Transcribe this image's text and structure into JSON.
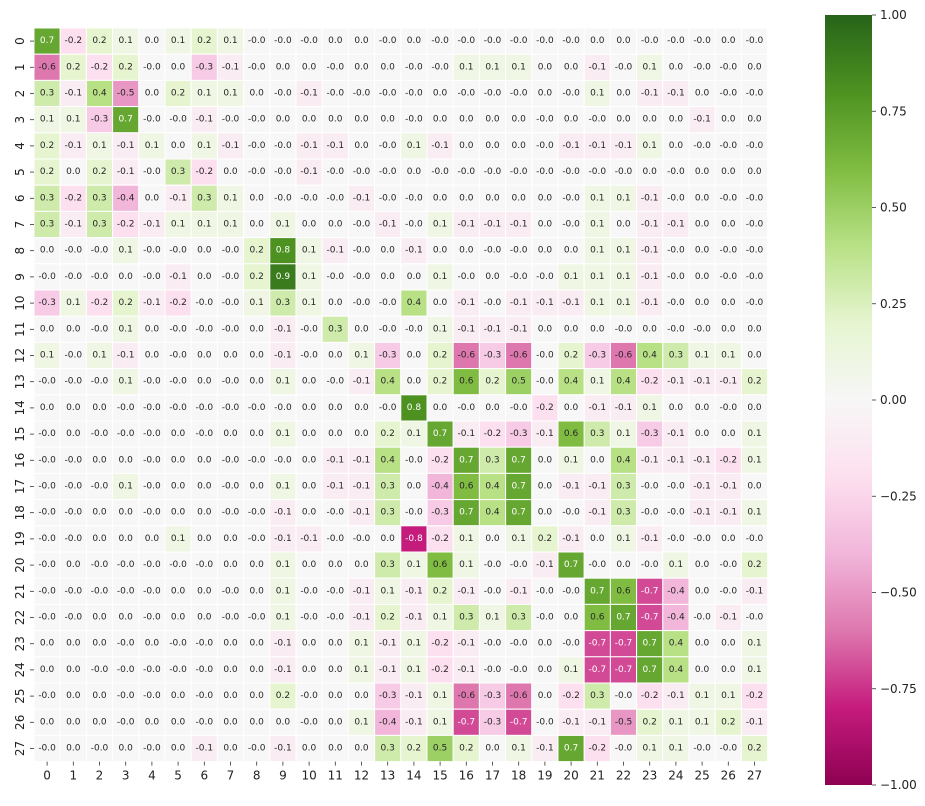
{
  "chart_data": {
    "type": "heatmap",
    "x_tick_labels": [
      "0",
      "1",
      "2",
      "3",
      "4",
      "5",
      "6",
      "7",
      "8",
      "9",
      "10",
      "11",
      "12",
      "13",
      "14",
      "15",
      "16",
      "17",
      "18",
      "19",
      "20",
      "21",
      "22",
      "23",
      "24",
      "25",
      "26",
      "27"
    ],
    "y_tick_labels": [
      "0",
      "1",
      "2",
      "3",
      "4",
      "5",
      "6",
      "7",
      "8",
      "9",
      "10",
      "11",
      "12",
      "13",
      "14",
      "15",
      "16",
      "17",
      "18",
      "19",
      "20",
      "21",
      "22",
      "23",
      "24",
      "25",
      "26",
      "27"
    ],
    "value_range": [
      -1,
      1
    ],
    "colormap": "PiYG",
    "colorbar_ticks": [
      "1.00",
      "0.75",
      "0.50",
      "0.25",
      "0.00",
      "−0.25",
      "−0.50",
      "−0.75",
      "−1.00"
    ],
    "colorbar_tick_values": [
      1,
      0.75,
      0.5,
      0.25,
      0,
      -0.25,
      -0.5,
      -0.75,
      -1
    ],
    "annotations_format": "1 decimal",
    "values": [
      [
        0.7,
        -0.2,
        0.2,
        0.1,
        0.0,
        0.1,
        0.2,
        0.1,
        -0.0,
        -0.0,
        -0.0,
        0.0,
        0.0,
        -0.0,
        0.0,
        -0.0,
        -0.0,
        -0.0,
        -0.0,
        -0.0,
        -0.0,
        0.0,
        0.0,
        -0.0,
        -0.0,
        -0.0,
        0.0,
        -0.0
      ],
      [
        -0.6,
        0.2,
        -0.2,
        0.2,
        -0.0,
        0.0,
        -0.3,
        -0.1,
        -0.0,
        0.0,
        0.0,
        -0.0,
        0.0,
        0.0,
        -0.0,
        -0.0,
        0.1,
        0.1,
        0.1,
        0.0,
        0.0,
        -0.1,
        -0.0,
        0.1,
        0.0,
        -0.0,
        -0.0,
        0.0
      ],
      [
        0.3,
        -0.1,
        0.4,
        -0.5,
        0.0,
        0.2,
        0.1,
        0.1,
        0.0,
        -0.0,
        -0.1,
        -0.0,
        -0.0,
        -0.0,
        -0.0,
        0.0,
        -0.0,
        -0.0,
        -0.0,
        0.0,
        -0.0,
        0.1,
        0.0,
        -0.1,
        -0.1,
        0.0,
        -0.0,
        -0.0
      ],
      [
        0.1,
        0.1,
        -0.3,
        0.7,
        -0.0,
        -0.0,
        -0.1,
        -0.0,
        -0.0,
        0.0,
        0.0,
        0.0,
        0.0,
        0.0,
        -0.0,
        0.0,
        0.0,
        0.0,
        0.0,
        -0.0,
        0.0,
        -0.0,
        0.0,
        0.0,
        0.0,
        -0.1,
        0.0,
        0.0
      ],
      [
        0.2,
        -0.1,
        0.1,
        -0.1,
        0.1,
        0.0,
        0.1,
        -0.1,
        -0.0,
        -0.0,
        -0.1,
        -0.1,
        0.0,
        -0.0,
        0.1,
        -0.1,
        0.0,
        0.0,
        0.0,
        -0.0,
        -0.1,
        -0.1,
        -0.1,
        0.1,
        0.0,
        -0.0,
        -0.0,
        -0.0
      ],
      [
        0.2,
        0.0,
        0.2,
        -0.1,
        -0.0,
        0.3,
        -0.2,
        0.0,
        -0.0,
        -0.0,
        -0.1,
        -0.0,
        -0.0,
        -0.0,
        0.0,
        -0.0,
        -0.0,
        -0.0,
        -0.0,
        -0.0,
        -0.0,
        -0.0,
        -0.0,
        0.0,
        -0.0,
        0.0,
        0.0,
        0.0
      ],
      [
        0.3,
        -0.2,
        0.3,
        -0.4,
        0.0,
        -0.1,
        0.3,
        0.1,
        0.0,
        -0.0,
        -0.0,
        -0.0,
        -0.1,
        -0.0,
        -0.0,
        0.0,
        0.0,
        0.0,
        0.0,
        0.0,
        -0.0,
        0.1,
        0.1,
        -0.1,
        -0.0,
        0.0,
        -0.0,
        -0.0
      ],
      [
        0.3,
        -0.1,
        0.3,
        -0.2,
        -0.1,
        0.1,
        0.1,
        0.1,
        0.0,
        0.1,
        0.0,
        0.0,
        -0.0,
        -0.1,
        -0.0,
        0.1,
        -0.1,
        -0.1,
        -0.1,
        0.0,
        -0.0,
        0.1,
        0.0,
        -0.1,
        -0.1,
        0.0,
        0.0,
        -0.0
      ],
      [
        0.0,
        -0.0,
        -0.0,
        0.1,
        -0.0,
        -0.0,
        0.0,
        -0.0,
        0.2,
        0.8,
        0.1,
        -0.1,
        -0.0,
        0.0,
        -0.1,
        0.0,
        0.0,
        -0.0,
        -0.0,
        0.0,
        0.0,
        0.1,
        0.1,
        -0.1,
        -0.0,
        0.0,
        -0.0,
        -0.0
      ],
      [
        -0.0,
        -0.0,
        -0.0,
        0.0,
        -0.0,
        -0.1,
        0.0,
        -0.0,
        0.2,
        0.9,
        0.1,
        -0.0,
        -0.0,
        0.0,
        0.0,
        0.1,
        -0.0,
        0.0,
        -0.0,
        -0.0,
        0.1,
        0.1,
        0.1,
        -0.1,
        -0.0,
        0.0,
        -0.0,
        -0.0
      ],
      [
        -0.3,
        0.1,
        -0.2,
        0.2,
        -0.1,
        -0.2,
        -0.0,
        -0.0,
        0.1,
        0.3,
        0.1,
        0.0,
        -0.0,
        -0.0,
        0.4,
        0.0,
        -0.1,
        -0.0,
        -0.1,
        -0.1,
        -0.1,
        0.1,
        0.1,
        -0.1,
        -0.0,
        0.0,
        0.0,
        -0.0
      ],
      [
        0.0,
        0.0,
        -0.0,
        0.1,
        0.0,
        -0.0,
        -0.0,
        -0.0,
        0.0,
        -0.1,
        -0.0,
        0.3,
        0.0,
        -0.0,
        -0.0,
        0.1,
        -0.1,
        -0.1,
        -0.1,
        0.0,
        0.0,
        0.0,
        -0.0,
        0.0,
        -0.0,
        -0.0,
        0.0,
        0.0
      ],
      [
        0.1,
        -0.0,
        0.1,
        -0.1,
        0.0,
        -0.0,
        0.0,
        0.0,
        0.0,
        -0.1,
        -0.0,
        0.0,
        0.1,
        -0.3,
        0.0,
        0.2,
        -0.6,
        -0.3,
        -0.6,
        -0.0,
        0.2,
        -0.3,
        -0.6,
        0.4,
        0.3,
        0.1,
        0.1,
        0.0
      ],
      [
        -0.0,
        -0.0,
        -0.0,
        0.1,
        -0.0,
        -0.0,
        0.0,
        -0.0,
        0.0,
        0.1,
        0.0,
        -0.0,
        -0.1,
        0.4,
        0.0,
        0.2,
        0.6,
        0.2,
        0.5,
        -0.0,
        0.4,
        0.1,
        0.4,
        -0.2,
        -0.1,
        -0.1,
        -0.1,
        0.2
      ],
      [
        0.0,
        0.0,
        0.0,
        -0.0,
        -0.0,
        -0.0,
        -0.0,
        -0.0,
        -0.0,
        -0.0,
        0.0,
        0.0,
        0.0,
        -0.0,
        0.8,
        0.0,
        -0.0,
        0.0,
        -0.0,
        -0.2,
        0.0,
        -0.1,
        -0.1,
        0.1,
        0.0,
        0.0,
        -0.0,
        0.0
      ],
      [
        -0.0,
        0.0,
        -0.0,
        -0.0,
        -0.0,
        0.0,
        -0.0,
        0.0,
        0.0,
        0.1,
        0.0,
        0.0,
        0.0,
        0.2,
        0.1,
        0.7,
        -0.1,
        -0.2,
        -0.3,
        -0.1,
        0.6,
        0.3,
        0.1,
        -0.3,
        -0.1,
        0.0,
        0.0,
        0.1
      ],
      [
        -0.0,
        -0.0,
        0.0,
        0.0,
        -0.0,
        0.0,
        0.0,
        -0.0,
        -0.0,
        -0.0,
        0.0,
        -0.1,
        -0.1,
        0.4,
        -0.0,
        -0.2,
        0.7,
        0.3,
        0.7,
        0.0,
        0.1,
        0.0,
        0.4,
        -0.1,
        -0.1,
        -0.1,
        -0.2,
        0.1
      ],
      [
        -0.0,
        -0.0,
        -0.0,
        0.1,
        -0.0,
        0.0,
        0.0,
        -0.0,
        0.0,
        0.1,
        0.0,
        -0.1,
        -0.1,
        0.3,
        0.0,
        -0.4,
        0.6,
        0.4,
        0.7,
        0.0,
        -0.1,
        -0.1,
        0.3,
        -0.0,
        -0.0,
        -0.1,
        -0.1,
        0.0
      ],
      [
        -0.0,
        -0.0,
        0.0,
        0.0,
        -0.0,
        0.0,
        0.0,
        -0.0,
        -0.0,
        -0.1,
        0.0,
        -0.0,
        -0.1,
        0.3,
        -0.0,
        -0.3,
        0.7,
        0.4,
        0.7,
        0.0,
        -0.0,
        -0.1,
        0.3,
        -0.0,
        -0.0,
        -0.1,
        -0.1,
        0.1
      ],
      [
        -0.0,
        -0.0,
        0.0,
        0.0,
        0.0,
        0.1,
        0.0,
        0.0,
        -0.0,
        -0.1,
        -0.1,
        -0.0,
        -0.0,
        0.0,
        -0.8,
        -0.2,
        0.1,
        0.0,
        0.1,
        0.2,
        -0.1,
        0.0,
        0.1,
        -0.1,
        -0.0,
        -0.0,
        0.0,
        -0.0
      ],
      [
        -0.0,
        0.0,
        -0.0,
        -0.0,
        -0.0,
        -0.0,
        -0.0,
        0.0,
        0.0,
        0.1,
        0.0,
        0.0,
        0.0,
        0.3,
        0.1,
        0.6,
        0.1,
        -0.0,
        -0.0,
        -0.1,
        0.7,
        -0.0,
        0.0,
        -0.0,
        0.1,
        0.0,
        -0.0,
        0.2
      ],
      [
        -0.0,
        -0.0,
        -0.0,
        -0.0,
        -0.0,
        0.0,
        0.0,
        -0.0,
        0.0,
        0.1,
        -0.0,
        -0.0,
        -0.1,
        0.1,
        -0.1,
        0.2,
        -0.1,
        -0.0,
        -0.1,
        -0.0,
        -0.0,
        0.7,
        0.6,
        -0.7,
        -0.4,
        0.0,
        -0.0,
        -0.1
      ],
      [
        -0.0,
        -0.0,
        0.0,
        0.0,
        -0.0,
        0.0,
        0.0,
        -0.0,
        -0.0,
        0.1,
        -0.0,
        -0.0,
        -0.1,
        0.2,
        -0.1,
        0.1,
        0.3,
        0.1,
        0.3,
        -0.0,
        0.0,
        0.6,
        0.7,
        -0.7,
        -0.4,
        -0.0,
        -0.1,
        -0.0
      ],
      [
        0.0,
        0.0,
        0.0,
        -0.0,
        0.0,
        -0.0,
        -0.0,
        0.0,
        0.0,
        -0.1,
        0.0,
        0.0,
        0.1,
        -0.1,
        0.1,
        -0.2,
        -0.1,
        -0.0,
        -0.0,
        0.0,
        -0.0,
        -0.7,
        -0.7,
        0.7,
        0.4,
        0.0,
        0.0,
        0.1
      ],
      [
        0.0,
        0.0,
        -0.0,
        -0.0,
        -0.0,
        -0.0,
        -0.0,
        0.0,
        0.0,
        -0.1,
        0.0,
        0.0,
        0.1,
        -0.1,
        0.1,
        -0.2,
        -0.1,
        -0.0,
        -0.0,
        0.0,
        0.1,
        -0.7,
        -0.7,
        0.7,
        0.4,
        0.0,
        0.0,
        0.1
      ],
      [
        -0.0,
        0.0,
        0.0,
        -0.0,
        -0.0,
        0.0,
        -0.0,
        0.0,
        0.0,
        0.2,
        -0.0,
        0.0,
        0.0,
        -0.3,
        -0.1,
        0.1,
        -0.6,
        -0.3,
        -0.6,
        0.0,
        -0.2,
        0.3,
        -0.0,
        -0.2,
        -0.1,
        0.1,
        0.1,
        -0.2
      ],
      [
        0.0,
        0.0,
        0.0,
        -0.0,
        0.0,
        0.0,
        -0.0,
        0.0,
        0.0,
        0.0,
        -0.0,
        0.0,
        0.1,
        -0.4,
        -0.1,
        0.1,
        -0.7,
        -0.3,
        -0.7,
        -0.0,
        -0.1,
        -0.1,
        -0.5,
        0.2,
        0.1,
        0.1,
        0.2,
        -0.1
      ],
      [
        -0.0,
        0.0,
        -0.0,
        0.0,
        -0.0,
        0.0,
        -0.1,
        0.0,
        -0.0,
        -0.1,
        0.0,
        0.0,
        0.0,
        0.3,
        0.2,
        0.5,
        0.2,
        0.0,
        0.1,
        -0.1,
        0.7,
        -0.2,
        -0.0,
        0.1,
        0.1,
        -0.0,
        -0.0,
        0.2
      ]
    ]
  }
}
